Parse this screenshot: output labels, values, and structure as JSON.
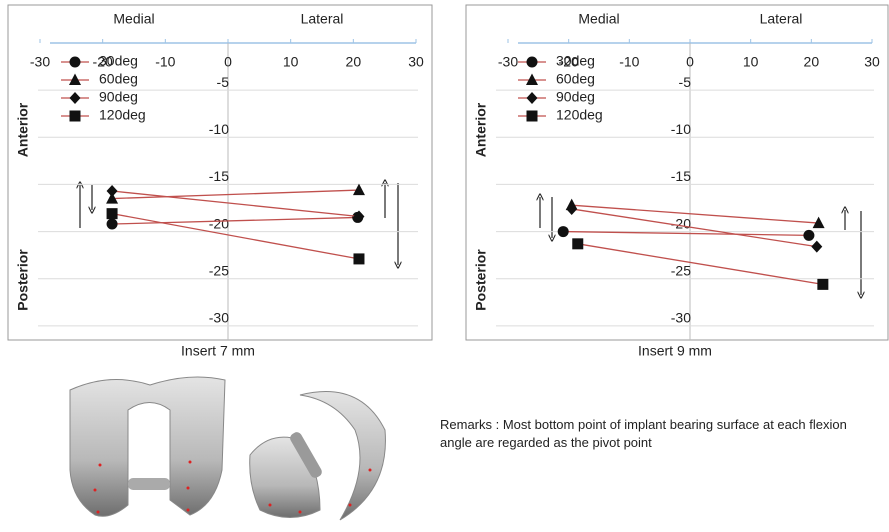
{
  "chart_data": [
    {
      "type": "line",
      "x_label": "Insert 7 mm",
      "regions": [
        "Medial",
        "Lateral"
      ],
      "side_labels": [
        "Anterior",
        "Posterior"
      ],
      "xlim": [
        -30,
        30
      ],
      "xticks": [
        -30,
        -20,
        -10,
        0,
        10,
        20,
        30
      ],
      "ylim": [
        -31.5,
        0
      ],
      "yticks": [
        -5,
        -10,
        -15,
        -20,
        -25,
        -30
      ],
      "grid": true,
      "line_color": "#c0504d",
      "marker_color": "#111111",
      "series": [
        {
          "name": "30deg",
          "marker": "circle",
          "x": [
            -18.5,
            20.7
          ],
          "values": [
            -19.2,
            -18.5
          ]
        },
        {
          "name": "60deg",
          "marker": "triangle",
          "x": [
            -18.5,
            20.9
          ],
          "values": [
            -16.5,
            -15.6
          ]
        },
        {
          "name": "90deg",
          "marker": "diamond",
          "x": [
            -18.5,
            20.9
          ],
          "values": [
            -15.7,
            -18.4
          ]
        },
        {
          "name": "120deg",
          "marker": "square",
          "x": [
            -18.5,
            20.9
          ],
          "values": [
            -18.1,
            -22.9
          ]
        }
      ]
    },
    {
      "type": "line",
      "x_label": "Insert 9 mm",
      "regions": [
        "Medial",
        "Lateral"
      ],
      "side_labels": [
        "Anterior",
        "Posterior"
      ],
      "xlim": [
        -30,
        30
      ],
      "xticks": [
        -30,
        -20,
        -10,
        0,
        10,
        20,
        30
      ],
      "ylim": [
        -31.5,
        0
      ],
      "yticks": [
        -5,
        -10,
        -15,
        -20,
        -25,
        -30
      ],
      "grid": true,
      "line_color": "#c0504d",
      "marker_color": "#111111",
      "series": [
        {
          "name": "30deg",
          "marker": "circle",
          "x": [
            -20.9,
            19.6
          ],
          "values": [
            -20.0,
            -20.4
          ]
        },
        {
          "name": "60deg",
          "marker": "triangle",
          "x": [
            -19.5,
            21.2
          ],
          "values": [
            -17.2,
            -19.1
          ]
        },
        {
          "name": "90deg",
          "marker": "diamond",
          "x": [
            -19.5,
            20.9
          ],
          "values": [
            -17.6,
            -21.6
          ]
        },
        {
          "name": "120deg",
          "marker": "square",
          "x": [
            -18.5,
            21.9
          ],
          "values": [
            -21.3,
            -25.6
          ]
        }
      ]
    }
  ],
  "remarks": "Remarks : Most bottom point of implant bearing surface at each flexion angle are regarded as the pivot point"
}
